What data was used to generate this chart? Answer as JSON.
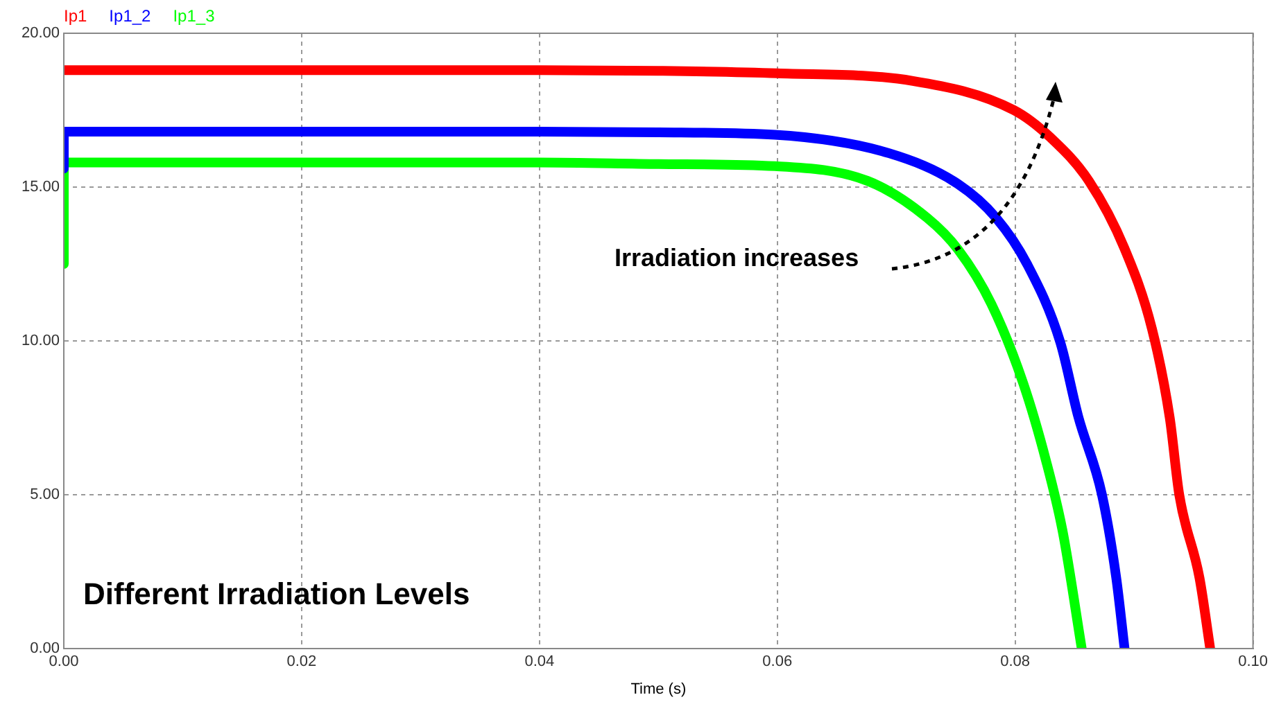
{
  "chart_data": {
    "type": "line",
    "xlabel": "Time (s)",
    "legend": "top left",
    "grid": true,
    "marker": "none",
    "line_style": "solid",
    "xlim": [
      0,
      0.1
    ],
    "xticks": [
      {
        "value": 0,
        "label": "0.00"
      },
      {
        "value": 0.02,
        "label": "0.02"
      },
      {
        "value": 0.04,
        "label": "0.04"
      },
      {
        "value": 0.06,
        "label": "0.06"
      },
      {
        "value": 0.08,
        "label": "0.08"
      },
      {
        "value": 0.1,
        "label": "0.10"
      }
    ],
    "ylim": [
      0,
      20
    ],
    "yticks": [
      {
        "value": 0,
        "label": "0.00"
      },
      {
        "value": 5,
        "label": "5.00"
      },
      {
        "value": 10,
        "label": "10.00"
      },
      {
        "value": 15,
        "label": "15.00"
      },
      {
        "value": 20,
        "label": "20.00"
      }
    ],
    "annotations": [
      "Irradiation increases",
      "Different Irradiation Levels"
    ],
    "series": [
      {
        "name": "Ip1",
        "color": "#ff0000",
        "x": [
          0,
          0.04,
          0.05,
          0.06,
          0.0714,
          0.0799,
          0.083,
          0.0862,
          0.0892,
          0.0915,
          0.093,
          0.0938,
          0.0955,
          0.0964
        ],
        "values": [
          18.8,
          18.8,
          18.78,
          18.7,
          18.45,
          17.5,
          16.6,
          15.2,
          13,
          10.4,
          7.5,
          5,
          2.3,
          0
        ]
      },
      {
        "name": "Ip1_2",
        "color": "#0000ff",
        "x": [
          0,
          0,
          0.04,
          0.05,
          0.0598,
          0.0694,
          0.0752,
          0.0784,
          0.081,
          0.0838,
          0.0853,
          0.0873,
          0.0885,
          0.0892
        ],
        "values": [
          15.6,
          16.8,
          16.8,
          16.78,
          16.7,
          16.1,
          15.1,
          14,
          12.5,
          9.95,
          7.55,
          5,
          2.3,
          0
        ]
      },
      {
        "name": "Ip1_3",
        "color": "#00ff00",
        "x": [
          0,
          0,
          0.04,
          0.05,
          0.0598,
          0.0676,
          0.0726,
          0.0752,
          0.078,
          0.0807,
          0.0826,
          0.084,
          0.0856
        ],
        "values": [
          12.5,
          15.8,
          15.8,
          15.75,
          15.68,
          15.2,
          14,
          12.97,
          11.2,
          8.6,
          6.1,
          3.8,
          0
        ]
      }
    ]
  }
}
